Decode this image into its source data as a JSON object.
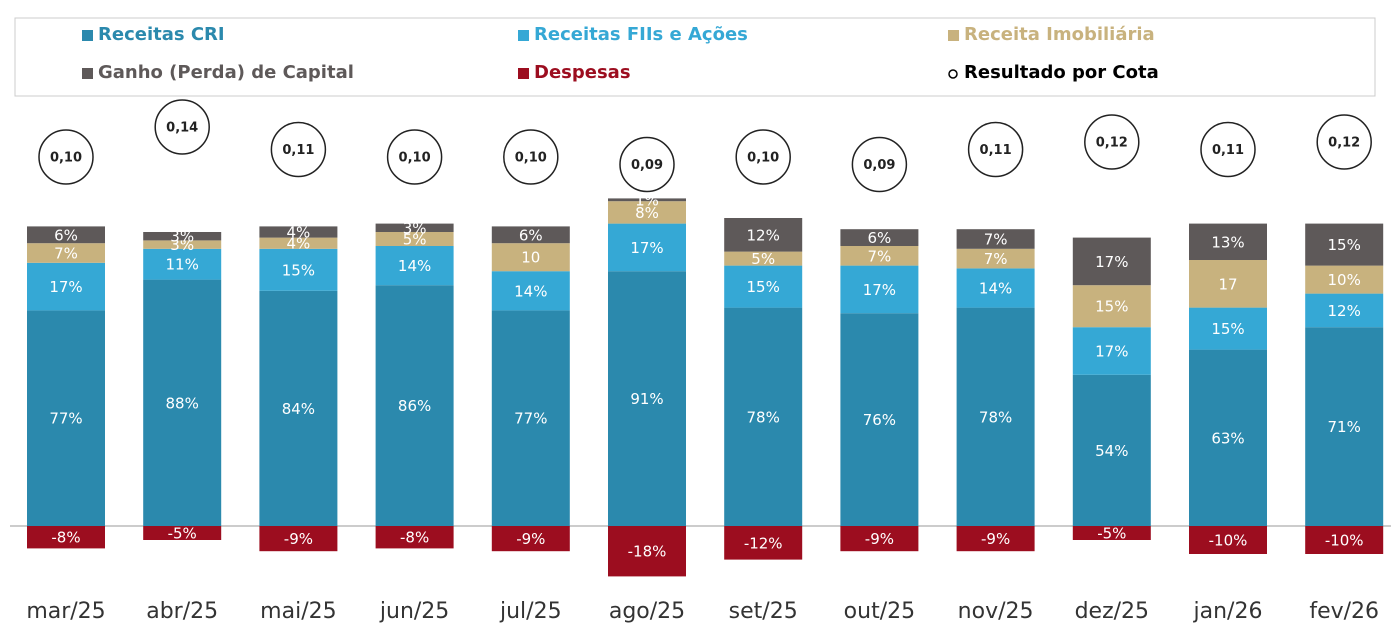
{
  "chart_data": {
    "type": "bar",
    "stacked": true,
    "categories": [
      "mar/25",
      "abr/25",
      "mai/25",
      "jun/25",
      "jul/25",
      "ago/25",
      "set/25",
      "out/25",
      "nov/25",
      "dez/25",
      "jan/26",
      "fev/26"
    ],
    "series": [
      {
        "name": "Receitas CRI",
        "color": "#2b89ad",
        "values": [
          77,
          88,
          84,
          86,
          77,
          91,
          78,
          76,
          78,
          54,
          63,
          71
        ],
        "value_labels": [
          "77%",
          "88%",
          "84%",
          "86%",
          "77%",
          "91%",
          "78%",
          "76%",
          "78%",
          "54%",
          "63%",
          "71%"
        ]
      },
      {
        "name": "Receitas FIIs e Ações",
        "color": "#35a8d5",
        "values": [
          17,
          11,
          15,
          14,
          14,
          17,
          15,
          17,
          14,
          17,
          15,
          12
        ],
        "value_labels": [
          "17%",
          "11%",
          "15%",
          "14%",
          "14%",
          "17%",
          "15%",
          "17%",
          "14%",
          "17%",
          "15%",
          "12%"
        ]
      },
      {
        "name": "Receita Imobiliária",
        "color": "#c8b27e",
        "values": [
          7,
          3,
          4,
          5,
          10,
          8,
          5,
          7,
          7,
          15,
          17,
          10
        ],
        "value_labels": [
          "7%",
          "3%",
          "4%",
          "5%",
          "10",
          "8%",
          "5%",
          "7%",
          "7%",
          "15%",
          "17",
          "10%"
        ]
      },
      {
        "name": "Ganho (Perda) de Capital",
        "color": "#5e5959",
        "values": [
          6,
          3,
          4,
          3,
          6,
          1,
          12,
          6,
          7,
          17,
          13,
          15
        ],
        "value_labels": [
          "6%",
          "3%",
          "4%",
          "3%",
          "6%",
          "1%",
          "12%",
          "6%",
          "7%",
          "17%",
          "13%",
          "15%"
        ]
      },
      {
        "name": "Despesas",
        "color": "#9c0d1f",
        "values": [
          -8,
          -5,
          -9,
          -8,
          -9,
          -18,
          -12,
          -9,
          -9,
          -5,
          -10,
          -10
        ],
        "value_labels": [
          "-8%",
          "-5%",
          "-9%",
          "-8%",
          "-9%",
          "-18%",
          "-12%",
          "-9%",
          "-9%",
          "-5%",
          "-10%",
          "-10%"
        ]
      },
      {
        "name": "Resultado por Cota",
        "type": "scatter",
        "color": "#000000",
        "values": [
          0.1,
          0.14,
          0.11,
          0.1,
          0.1,
          0.09,
          0.1,
          0.09,
          0.11,
          0.12,
          0.11,
          0.12
        ],
        "value_labels": [
          "0,10",
          "0,14",
          "0,11",
          "0,10",
          "0,10",
          "0,09",
          "0,10",
          "0,09",
          "0,11",
          "0,12",
          "0,11",
          "0,12"
        ]
      }
    ]
  }
}
